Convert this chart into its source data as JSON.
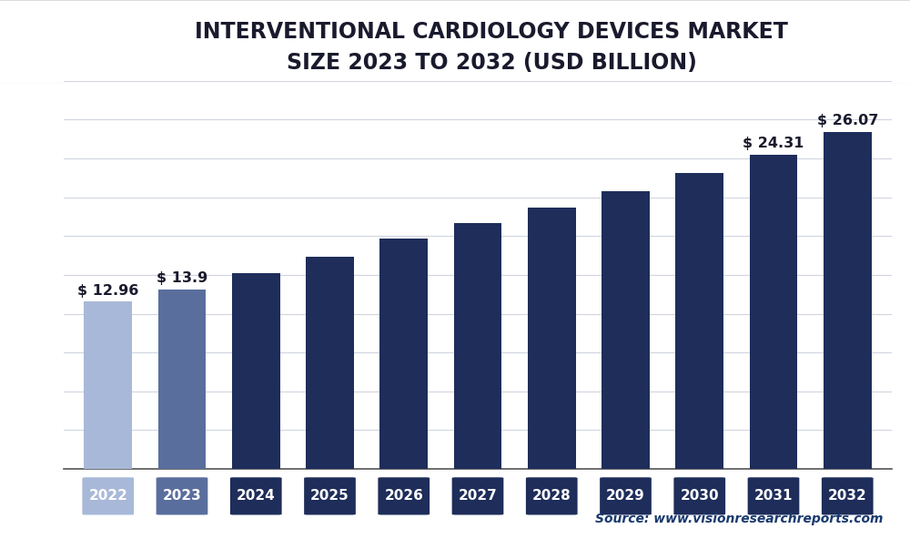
{
  "categories": [
    "2022",
    "2023",
    "2024",
    "2025",
    "2026",
    "2027",
    "2028",
    "2029",
    "2030",
    "2031",
    "2032"
  ],
  "values": [
    12.96,
    13.9,
    15.1,
    16.4,
    17.8,
    19.0,
    20.2,
    21.5,
    22.9,
    24.31,
    26.07
  ],
  "bar_colors": [
    "#a8b8d8",
    "#5a6e9e",
    "#1e2d5a",
    "#1e2d5a",
    "#1e2d5a",
    "#1e2d5a",
    "#1e2d5a",
    "#1e2d5a",
    "#1e2d5a",
    "#1e2d5a",
    "#1e2d5a"
  ],
  "tick_label_colors": [
    "#a8b8d8",
    "#5a6e9e",
    "#1e2d5a",
    "#1e2d5a",
    "#1e2d5a",
    "#1e2d5a",
    "#1e2d5a",
    "#1e2d5a",
    "#1e2d5a",
    "#1e2d5a",
    "#1e2d5a"
  ],
  "value_labels": [
    "$ 12.96",
    "$ 13.9",
    "",
    "",
    "",
    "",
    "",
    "",
    "",
    "$ 24.31",
    "$ 26.07"
  ],
  "title_line1": "INTERVENTIONAL CARDIOLOGY DEVICES MARKET",
  "title_line2": "SIZE 2023 TO 2032 (USD BILLION)",
  "source_text": "Source: www.visionresearchreports.com",
  "ylim": [
    0,
    30
  ],
  "background_color": "#ffffff",
  "plot_bg_color": "#ffffff",
  "header_bg_color": "#ffffff",
  "grid_color": "#d0d5e0",
  "title_color": "#1a1a2e",
  "title_fontsize": 17,
  "bar_width": 0.65,
  "value_label_fontsize": 11.5,
  "tick_fontsize": 11,
  "source_fontsize": 10
}
